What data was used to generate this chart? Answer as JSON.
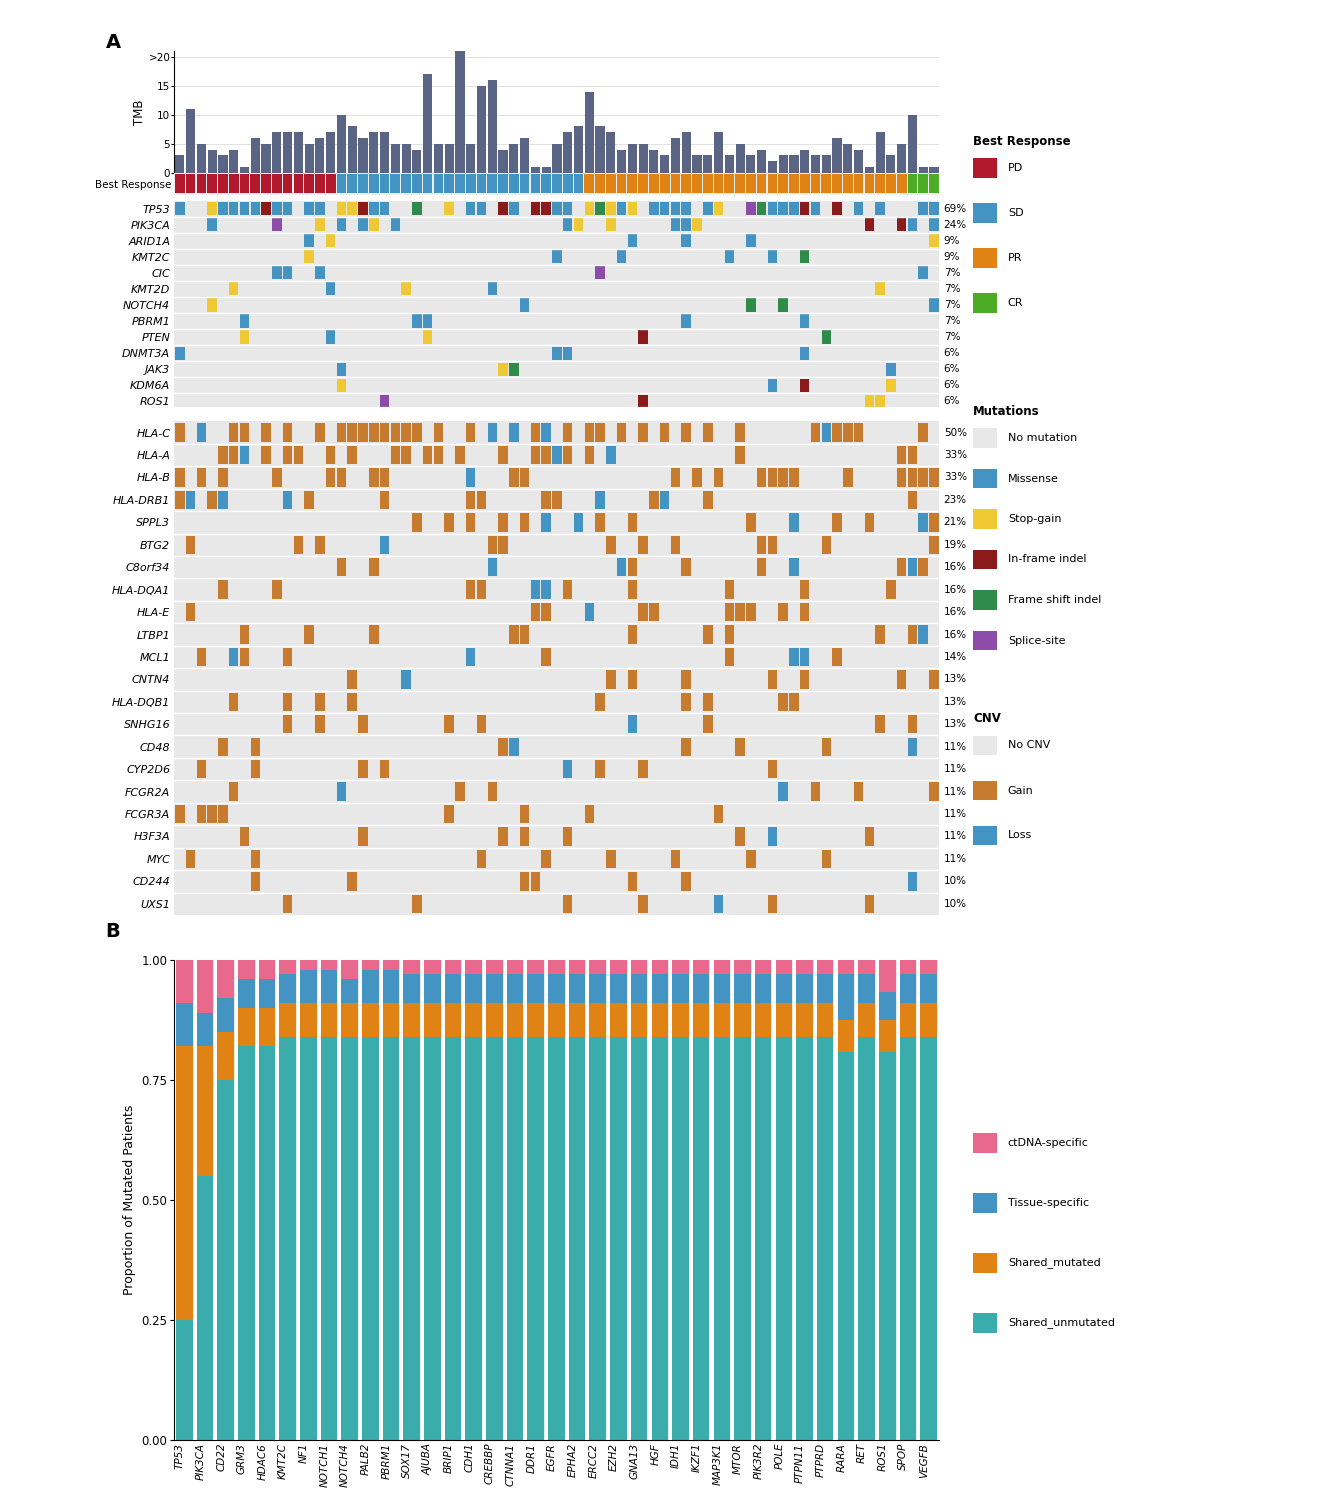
{
  "tmb_values": [
    3,
    11,
    5,
    4,
    3,
    4,
    1,
    6,
    5,
    7,
    7,
    7,
    5,
    6,
    7,
    10,
    8,
    6,
    7,
    7,
    5,
    5,
    4,
    17,
    5,
    5,
    22,
    5,
    15,
    16,
    4,
    5,
    6,
    1,
    1,
    5,
    7,
    8,
    14,
    8,
    7,
    4,
    5,
    5,
    4,
    3,
    6,
    7,
    3,
    3,
    7,
    3,
    5,
    3,
    4,
    2,
    3,
    3,
    4,
    3,
    3,
    6,
    5,
    4,
    1,
    7,
    3,
    5,
    10,
    1,
    1
  ],
  "best_response_colors": [
    "#b2182b",
    "#b2182b",
    "#b2182b",
    "#b2182b",
    "#b2182b",
    "#b2182b",
    "#b2182b",
    "#b2182b",
    "#b2182b",
    "#b2182b",
    "#b2182b",
    "#b2182b",
    "#b2182b",
    "#b2182b",
    "#b2182b",
    "#4393c3",
    "#4393c3",
    "#4393c3",
    "#4393c3",
    "#4393c3",
    "#4393c3",
    "#4393c3",
    "#4393c3",
    "#4393c3",
    "#4393c3",
    "#4393c3",
    "#4393c3",
    "#4393c3",
    "#4393c3",
    "#4393c3",
    "#4393c3",
    "#4393c3",
    "#4393c3",
    "#4393c3",
    "#4393c3",
    "#4393c3",
    "#4393c3",
    "#4393c3",
    "#e08214",
    "#e08214",
    "#e08214",
    "#e08214",
    "#e08214",
    "#e08214",
    "#e08214",
    "#e08214",
    "#e08214",
    "#e08214",
    "#e08214",
    "#e08214",
    "#e08214",
    "#e08214",
    "#e08214",
    "#e08214",
    "#e08214",
    "#e08214",
    "#e08214",
    "#e08214",
    "#e08214",
    "#e08214",
    "#e08214",
    "#e08214",
    "#e08214",
    "#e08214",
    "#e08214",
    "#e08214",
    "#e08214",
    "#e08214",
    "#4dac26",
    "#4dac26",
    "#4dac26"
  ],
  "n_samples": 71,
  "mutation_genes": [
    "TP53",
    "PIK3CA",
    "ARID1A",
    "KMT2C",
    "CIC",
    "KMT2D",
    "NOTCH4",
    "PBRM1",
    "PTEN",
    "DNMT3A",
    "JAK3",
    "KDM6A",
    "ROS1"
  ],
  "mutation_pct": [
    "69%",
    "24%",
    "9%",
    "9%",
    "7%",
    "7%",
    "7%",
    "7%",
    "7%",
    "6%",
    "6%",
    "6%",
    "6%"
  ],
  "cnv_genes": [
    "HLA-C",
    "HLA-A",
    "HLA-B",
    "HLA-DRB1",
    "SPPL3",
    "BTG2",
    "C8orf34",
    "HLA-DQA1",
    "HLA-E",
    "LTBP1",
    "MCL1",
    "CNTN4",
    "HLA-DQB1",
    "SNHG16",
    "CD48",
    "CYP2D6",
    "FCGR2A",
    "FCGR3A",
    "H3F3A",
    "MYC",
    "CD244",
    "UXS1"
  ],
  "cnv_pct": [
    "50%",
    "33%",
    "33%",
    "23%",
    "21%",
    "19%",
    "16%",
    "16%",
    "16%",
    "16%",
    "14%",
    "13%",
    "13%",
    "13%",
    "11%",
    "11%",
    "11%",
    "11%",
    "11%",
    "11%",
    "10%",
    "10%"
  ],
  "mut_colors": {
    "0": "#e8e8e8",
    "1": "#4393c3",
    "2": "#f0c832",
    "3": "#8b1a1a",
    "4": "#2e8b4a",
    "5": "#8b4da8"
  },
  "cnv_colors": {
    "0": "#e8e8e8",
    "1": "#c77b2e",
    "2": "#4393c3"
  },
  "tmb_bar_color": "#5a6585",
  "bar_genes": [
    "TP53",
    "PIK3CA",
    "CD22",
    "GRM3",
    "HDAC6",
    "KMT2C",
    "NF1",
    "NOTCH1",
    "NOTCH4",
    "PALB2",
    "PBRM1",
    "SOX17",
    "AJUBA",
    "BRIP1",
    "CDH1",
    "CREBBP",
    "CTNNA1",
    "DDR1",
    "EGFR",
    "EPHA2",
    "ERCC2",
    "EZH2",
    "GNA13",
    "HGF",
    "IDH1",
    "IKZF1",
    "MAP3K1",
    "MTOR",
    "PIK3R2",
    "POLE",
    "PTPN11",
    "PTPRD",
    "RARA",
    "RET",
    "ROS1",
    "SPOP",
    "VEGFB"
  ],
  "shared_unmutated_raw": [
    0.25,
    0.55,
    0.75,
    0.82,
    0.82,
    0.84,
    0.84,
    0.84,
    0.84,
    0.84,
    0.84,
    0.84,
    0.84,
    0.84,
    0.84,
    0.84,
    0.84,
    0.84,
    0.84,
    0.84,
    0.84,
    0.84,
    0.84,
    0.84,
    0.84,
    0.84,
    0.84,
    0.84,
    0.84,
    0.84,
    0.84,
    0.84,
    0.84,
    0.84,
    0.84,
    0.84,
    0.84
  ],
  "shared_mutated_raw": [
    0.57,
    0.27,
    0.1,
    0.08,
    0.08,
    0.07,
    0.07,
    0.07,
    0.07,
    0.07,
    0.07,
    0.07,
    0.07,
    0.07,
    0.07,
    0.07,
    0.07,
    0.07,
    0.07,
    0.07,
    0.07,
    0.07,
    0.07,
    0.07,
    0.07,
    0.07,
    0.07,
    0.07,
    0.07,
    0.07,
    0.07,
    0.07,
    0.07,
    0.07,
    0.07,
    0.07,
    0.07
  ],
  "tissue_specific_raw": [
    0.09,
    0.07,
    0.07,
    0.06,
    0.06,
    0.06,
    0.07,
    0.07,
    0.05,
    0.07,
    0.07,
    0.06,
    0.06,
    0.06,
    0.06,
    0.06,
    0.06,
    0.06,
    0.06,
    0.06,
    0.06,
    0.06,
    0.06,
    0.06,
    0.06,
    0.06,
    0.06,
    0.06,
    0.06,
    0.06,
    0.06,
    0.06,
    0.1,
    0.06,
    0.06,
    0.06,
    0.06
  ],
  "ctdna_specific_raw": [
    0.09,
    0.11,
    0.08,
    0.04,
    0.04,
    0.03,
    0.02,
    0.02,
    0.04,
    0.02,
    0.02,
    0.03,
    0.03,
    0.03,
    0.03,
    0.03,
    0.03,
    0.03,
    0.03,
    0.03,
    0.03,
    0.03,
    0.03,
    0.03,
    0.03,
    0.03,
    0.03,
    0.03,
    0.03,
    0.03,
    0.03,
    0.03,
    0.03,
    0.03,
    0.07,
    0.03,
    0.03
  ],
  "c_shared_unmut": "#3aacac",
  "c_shared_mut": "#e08214",
  "c_tissue": "#4393c3",
  "c_ctdna": "#e8698d",
  "grid_bg": "#e8e8e8"
}
